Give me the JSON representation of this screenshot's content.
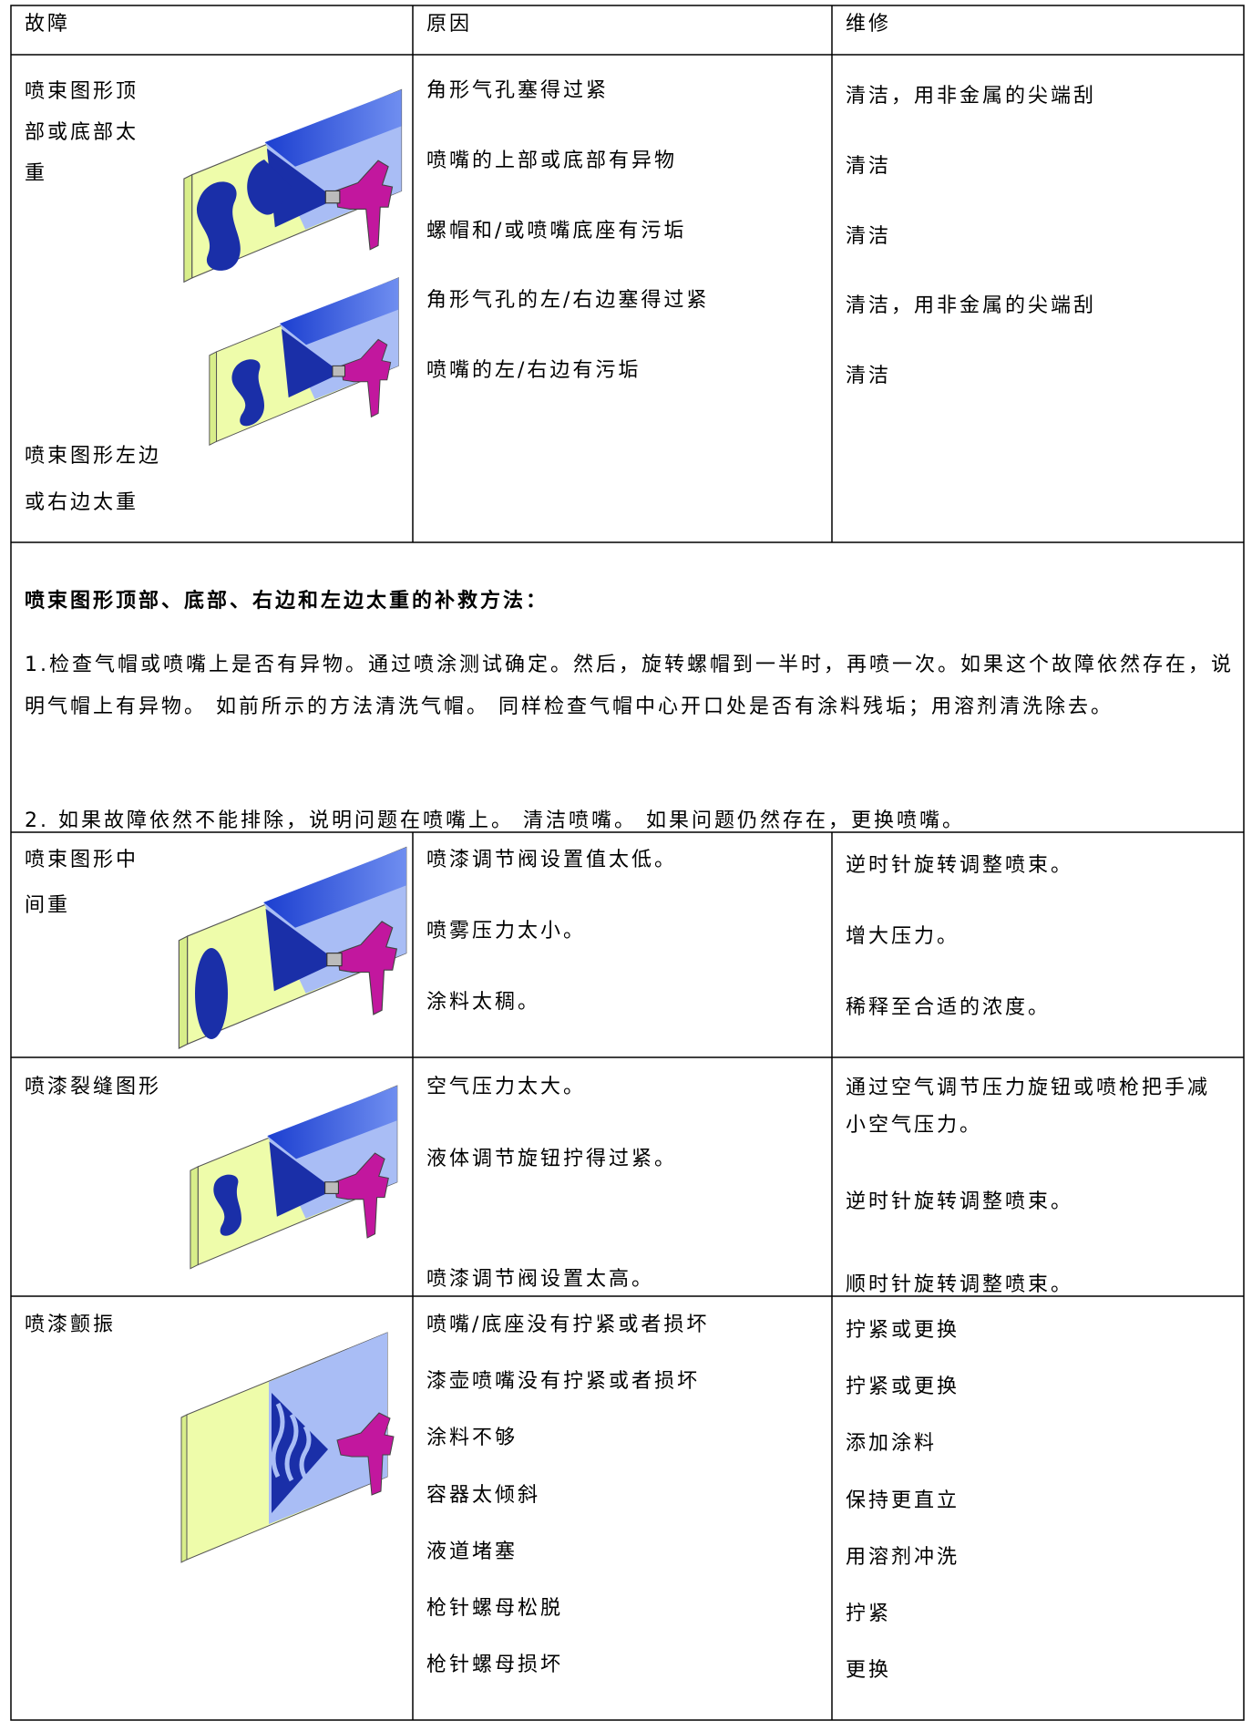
{
  "table": {
    "header": [
      "故障",
      "原因",
      "维修"
    ],
    "rows": [
      {
        "faults": [
          "喷束图形顶部或底部太重",
          "喷束图形左边或右边太重"
        ],
        "causes": [
          "角形气孔塞得过紧",
          "喷嘴的上部或底部有异物",
          "螺帽和/或喷嘴底座有污垢",
          "角形气孔的左/右边塞得过紧",
          "喷嘴的左/右边有污垢"
        ],
        "fixes": [
          "清洁，用非金属的尖端刮",
          "清洁",
          "清洁",
          "清洁，用非金属的尖端刮",
          "清洁"
        ]
      },
      {
        "faults": [
          "喷束图形中间重"
        ],
        "causes": [
          "喷漆调节阀设置值太低。",
          "喷雾压力太小。",
          "涂料太稠。"
        ],
        "fixes": [
          "逆时针旋转调整喷束。",
          "增大压力。",
          "稀释至合适的浓度。"
        ]
      },
      {
        "faults": [
          "喷漆裂缝图形"
        ],
        "causes": [
          "空气压力太大。",
          "液体调节旋钮拧得过紧。",
          "喷漆调节阀设置太高。"
        ],
        "fixes": [
          "通过空气调节压力旋钮或喷枪把手减小空气压力。",
          "逆时针旋转调整喷束。",
          "顺时针旋转调整喷束。"
        ]
      },
      {
        "faults": [
          "喷漆颤振"
        ],
        "causes": [
          "喷嘴/底座没有拧紧或者损坏",
          "漆壶喷嘴没有拧紧或者损坏",
          "涂料不够",
          "容器太倾斜",
          "液道堵塞",
          "枪针螺母松脱",
          "枪针螺母损坏"
        ],
        "fixes": [
          "拧紧或更换",
          "拧紧或更换",
          "添加涂料",
          "保持更直立",
          "用溶剂冲洗",
          "拧紧",
          "更换"
        ]
      }
    ],
    "note": {
      "heading": "喷束图形顶部、底部、右边和左边太重的补救方法：",
      "paragraphs": [
        "1.检查气帽或喷嘴上是否有异物。通过喷涂测试确定。然后，旋转螺帽到一半时，再喷一次。如果这个故障依然存在，说明气帽上有异物。 如前所示的方法清洗气帽。 同样检查气帽中心开口处是否有涂料残垢；用溶剂清洗除去。",
        "2. 如果故障依然不能排除，说明问题在喷嘴上。 清洁喷嘴。 如果问题仍然存在，更换喷嘴。"
      ]
    }
  }
}
